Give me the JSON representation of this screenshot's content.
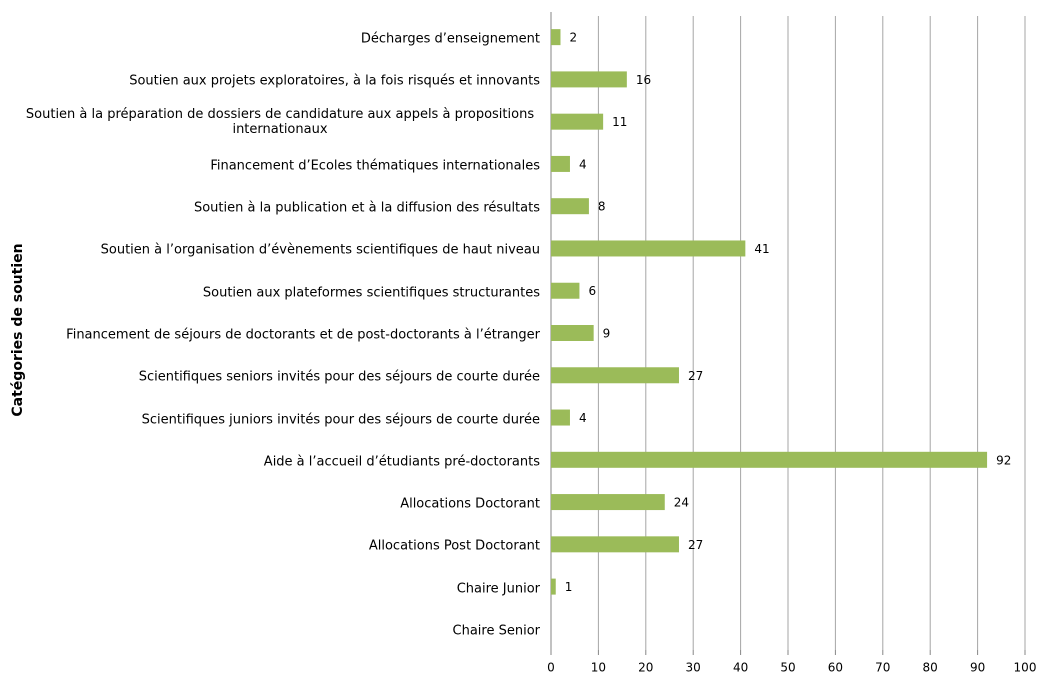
{
  "chart_data": {
    "type": "bar",
    "orientation": "horizontal",
    "y_label": "Catégories de soutien",
    "categories": [
      "Décharges d’enseignement",
      "Soutien aux projets exploratoires, à la fois risqués et innovants",
      "Soutien à la préparation de dossiers de candidature aux appels à propositions internationaux",
      "Financement d’Ecoles thématiques internationales",
      "Soutien à la publication et à la diffusion des résultats",
      "Soutien à l’organisation d’évènements scientifiques de haut niveau",
      "Soutien aux plateformes scientifiques structurantes",
      "Financement de séjours de doctorants et de post-doctorants à l’étranger",
      "Scientifiques seniors invités pour des séjours de courte durée",
      "Scientifiques juniors invités pour des séjours de courte durée",
      "Aide à l’accueil d’étudiants pré-doctorants",
      "Allocations Doctorant",
      "Allocations Post Doctorant",
      "Chaire Junior",
      "Chaire Senior"
    ],
    "values": [
      2,
      16,
      11,
      4,
      8,
      41,
      6,
      9,
      27,
      4,
      92,
      24,
      27,
      1,
      null
    ],
    "color": "#9bbb59",
    "xlim": [
      0,
      100
    ],
    "xticks": [
      0,
      10,
      20,
      30,
      40,
      50,
      60,
      70,
      80,
      90,
      100
    ],
    "grid": true
  }
}
